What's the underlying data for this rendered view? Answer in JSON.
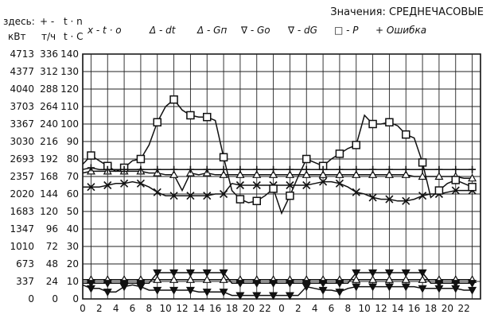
{
  "title": "Значения: СРЕДНЕЧАСОВЫЕ",
  "axis_headers": {
    "here_label": "здесь:",
    "kw_label": "кВт",
    "pm_label": "+  -",
    "tn_label": "t · n",
    "th_label": "т/ч",
    "tc_label": "t · C"
  },
  "legend": [
    {
      "name": "x - t · o",
      "marker": "x"
    },
    {
      "name": "Δ - dt",
      "marker": "triangle-up"
    },
    {
      "name": "Δ - Gп",
      "marker": "triangle-up"
    },
    {
      "name": "∇ - Go",
      "marker": "triangle-down"
    },
    {
      "name": "∇ - dG",
      "marker": "triangle-down"
    },
    {
      "name": "□ - P",
      "marker": "square"
    },
    {
      "name": "+ Ошибка",
      "marker": "plus"
    }
  ],
  "y_ticks": {
    "kw": [
      "0",
      "337",
      "673",
      "1010",
      "1347",
      "1683",
      "2020",
      "2357",
      "2693",
      "3030",
      "3367",
      "3703",
      "4040",
      "4377",
      "4713"
    ],
    "th": [
      "0",
      "24",
      "48",
      "72",
      "96",
      "120",
      "144",
      "168",
      "192",
      "216",
      "240",
      "264",
      "288",
      "312",
      "336"
    ],
    "tc": [
      "0",
      "10",
      "20",
      "30",
      "40",
      "50",
      "60",
      "70",
      "80",
      "90",
      "100",
      "110",
      "120",
      "130",
      "140"
    ]
  },
  "x_ticks": [
    "0",
    "2",
    "4",
    "6",
    "8",
    "10",
    "12",
    "14",
    "16",
    "18",
    "20",
    "22",
    "0",
    "2",
    "4",
    "6",
    "8",
    "10",
    "12",
    "14",
    "16",
    "18",
    "20",
    "22"
  ],
  "chart_data": {
    "type": "line",
    "title": "Значения: СРЕДНЕЧАСОВЫЕ",
    "x_unit": "hour (two consecutive days)",
    "x": [
      0,
      1,
      2,
      3,
      4,
      5,
      6,
      7,
      8,
      9,
      10,
      11,
      12,
      13,
      14,
      15,
      16,
      17,
      18,
      19,
      20,
      21,
      22,
      23,
      24,
      25,
      26,
      27,
      28,
      29,
      30,
      31,
      32,
      33,
      34,
      35,
      36,
      37,
      38,
      39,
      40,
      41,
      42,
      43,
      44,
      45,
      46,
      47
    ],
    "ylim": [
      0,
      140
    ],
    "grid": true,
    "legend_position": "top",
    "series": [
      {
        "name": "x - t · o",
        "marker": "x",
        "values": [
          64,
          64,
          64,
          65,
          66,
          66,
          67,
          66,
          64,
          61,
          59,
          59,
          59,
          59,
          59,
          59,
          60,
          60,
          66,
          65,
          65,
          65,
          65,
          65,
          65,
          65,
          65,
          65,
          66,
          67,
          67,
          66,
          64,
          61,
          60,
          58,
          57,
          57,
          56,
          56,
          57,
          59,
          60,
          60,
          61,
          62,
          62,
          62
        ]
      },
      {
        "name": "Δ - dt",
        "marker": "triangle-up",
        "values": [
          11,
          11,
          11,
          11,
          11,
          11,
          11,
          11,
          11,
          11,
          11,
          11,
          11,
          11,
          11,
          11,
          11,
          11,
          11,
          11,
          11,
          11,
          11,
          11,
          11,
          11,
          11,
          11,
          11,
          11,
          11,
          11,
          11,
          11,
          11,
          11,
          11,
          11,
          11,
          11,
          11,
          11,
          11,
          11,
          11,
          11,
          11,
          11
        ]
      },
      {
        "name": "Δ - Gп",
        "marker": "triangle-up",
        "values": [
          72,
          73,
          73,
          73,
          73,
          73,
          73,
          73,
          72,
          72,
          71,
          71,
          62,
          72,
          71,
          72,
          71,
          71,
          71,
          71,
          71,
          71,
          71,
          71,
          71,
          71,
          71,
          71,
          71,
          71,
          71,
          71,
          71,
          71,
          71,
          71,
          71,
          71,
          71,
          71,
          70,
          70,
          70,
          70,
          70,
          70,
          69,
          69
        ]
      },
      {
        "name": "∇ - Go",
        "marker": "triangle-down",
        "values": [
          9,
          9,
          9,
          9,
          9,
          9,
          9,
          9,
          9,
          15,
          15,
          15,
          15,
          15,
          15,
          15,
          15,
          15,
          9,
          9,
          9,
          9,
          9,
          9,
          9,
          9,
          9,
          9,
          9,
          9,
          9,
          9,
          9,
          15,
          15,
          15,
          15,
          15,
          15,
          15,
          15,
          15,
          9,
          9,
          9,
          9,
          9,
          9
        ]
      },
      {
        "name": "∇ - dG",
        "marker": "triangle-down",
        "values": [
          8,
          6,
          6,
          4,
          4,
          7,
          8,
          7,
          5,
          5,
          5,
          5,
          5,
          5,
          4,
          4,
          4,
          4,
          2,
          2,
          2,
          2,
          2,
          2,
          2,
          2,
          2,
          7,
          6,
          5,
          5,
          4,
          6,
          7,
          7,
          7,
          7,
          7,
          7,
          7,
          7,
          6,
          6,
          6,
          6,
          6,
          5,
          5
        ]
      },
      {
        "name": "□ - P",
        "marker": "square",
        "values": [
          77,
          82,
          79,
          76,
          73,
          75,
          79,
          80,
          88,
          101,
          110,
          114,
          108,
          105,
          104,
          104,
          102,
          81,
          62,
          57,
          55,
          56,
          59,
          63,
          49,
          59,
          70,
          80,
          78,
          76,
          80,
          83,
          86,
          88,
          105,
          100,
          100,
          101,
          99,
          94,
          92,
          78,
          58,
          62,
          66,
          68,
          66,
          64
        ]
      },
      {
        "name": "+ Ошибка",
        "marker": "plus",
        "values": [
          74,
          75,
          74,
          74,
          74,
          74,
          74,
          74,
          74,
          74,
          74,
          74,
          74,
          74,
          74,
          74,
          74,
          74,
          74,
          74,
          74,
          74,
          74,
          74,
          74,
          74,
          74,
          74,
          74,
          74,
          74,
          74,
          74,
          74,
          74,
          74,
          74,
          74,
          74,
          74,
          74,
          74,
          74,
          74,
          74,
          74,
          74,
          74
        ]
      }
    ]
  }
}
